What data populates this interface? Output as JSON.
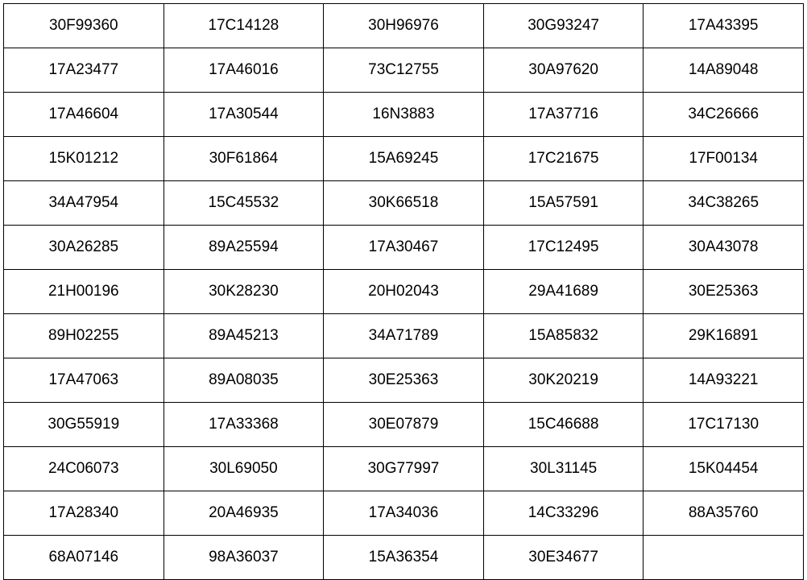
{
  "table": {
    "rows": [
      [
        "30F99360",
        "17C14128",
        "30H96976",
        "30G93247",
        "17A43395"
      ],
      [
        "17A23477",
        "17A46016",
        "73C12755",
        "30A97620",
        "14A89048"
      ],
      [
        "17A46604",
        "17A30544",
        "16N3883",
        "17A37716",
        "34C26666"
      ],
      [
        "15K01212",
        "30F61864",
        "15A69245",
        "17C21675",
        "17F00134"
      ],
      [
        "34A47954",
        "15C45532",
        "30K66518",
        "15A57591",
        "34C38265"
      ],
      [
        "30A26285",
        "89A25594",
        "17A30467",
        "17C12495",
        "30A43078"
      ],
      [
        "21H00196",
        "30K28230",
        "20H02043",
        "29A41689",
        "30E25363"
      ],
      [
        "89H02255",
        "89A45213",
        "34A71789",
        "15A85832",
        "29K16891"
      ],
      [
        "17A47063",
        "89A08035",
        "30E25363",
        "30K20219",
        "14A93221"
      ],
      [
        "30G55919",
        "17A33368",
        "30E07879",
        "15C46688",
        "17C17130"
      ],
      [
        "24C06073",
        "30L69050",
        "30G77997",
        "30L31145",
        "15K04454"
      ],
      [
        "17A28340",
        "20A46935",
        "17A34036",
        "14C33296",
        "88A35760"
      ],
      [
        "68A07146",
        "98A36037",
        "15A36354",
        "30E34677",
        ""
      ]
    ]
  }
}
